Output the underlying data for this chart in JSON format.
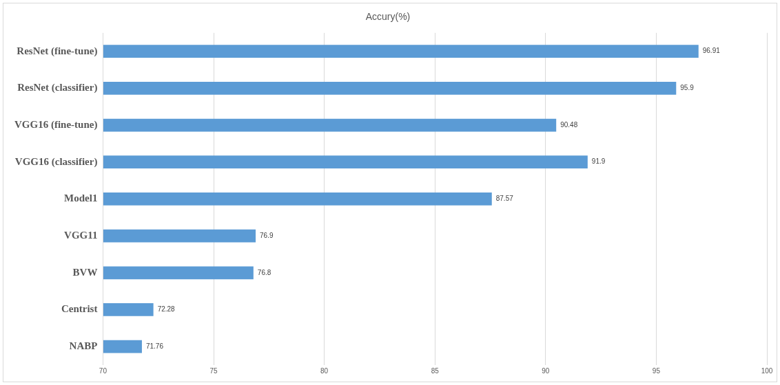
{
  "chart_data": {
    "type": "bar",
    "orientation": "horizontal",
    "title": "Accury(%)",
    "categories": [
      "ResNet (fine-tune)",
      "ResNet (classifier)",
      "VGG16 (fine-tune)",
      "VGG16 (classifier)",
      "Model1",
      "VGG11",
      "BVW",
      "Centrist",
      "NABP"
    ],
    "values": [
      96.91,
      95.9,
      90.48,
      91.9,
      87.57,
      76.9,
      76.8,
      72.28,
      71.76
    ],
    "color": "#5b9bd5",
    "xlim": [
      70,
      100
    ],
    "xticks": [
      70,
      75,
      80,
      85,
      90,
      95,
      100
    ],
    "grid": "x",
    "data_labels": true,
    "legend": false
  }
}
